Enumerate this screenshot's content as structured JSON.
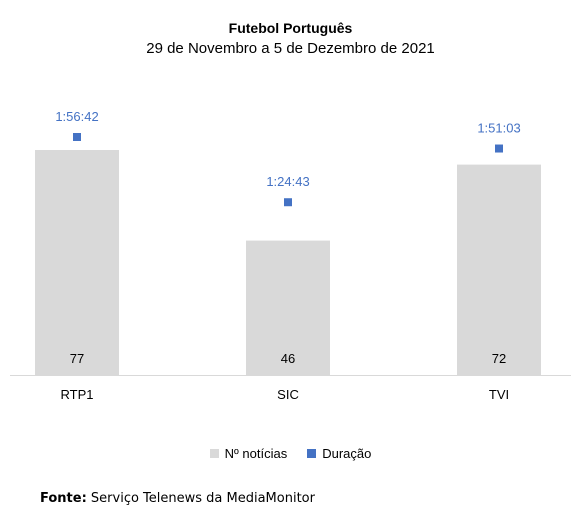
{
  "chart_data": {
    "type": "bar",
    "title": "Futebol Português",
    "subtitle": "29 de Novembro a 5 de Dezembro de 2021",
    "categories": [
      "RTP1",
      "SIC",
      "TVI"
    ],
    "series": [
      {
        "name": "Nº notícias",
        "type": "bar",
        "values": [
          77,
          46,
          72
        ],
        "color": "#d9d9d9"
      },
      {
        "name": "Duração",
        "type": "scatter",
        "values": [
          "1:56:42",
          "1:24:43",
          "1:51:03"
        ],
        "color": "#4472c4"
      }
    ],
    "xlabel": "",
    "ylabel": "",
    "ylim": [
      0,
      79
    ],
    "grid": false,
    "legend": "bottom"
  },
  "footer": {
    "source_label": "Fonte:",
    "source_text": " Serviço Telenews da MediaMonitor"
  }
}
